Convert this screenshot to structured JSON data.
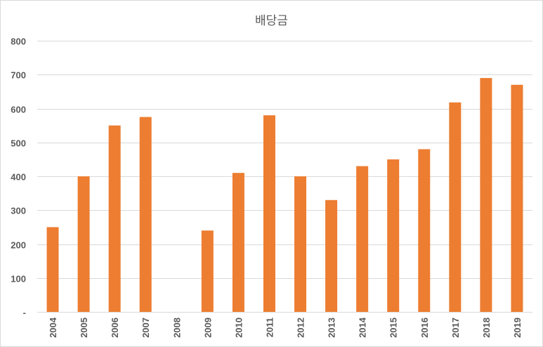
{
  "chart_data": {
    "type": "bar",
    "title": "배당금",
    "categories": [
      "2004",
      "2005",
      "2006",
      "2007",
      "2008",
      "2009",
      "2010",
      "2011",
      "2012",
      "2013",
      "2014",
      "2015",
      "2016",
      "2017",
      "2018",
      "2019"
    ],
    "series": [
      {
        "values": [
          250,
          400,
          550,
          575,
          0,
          240,
          410,
          580,
          400,
          330,
          430,
          450,
          480,
          618,
          690,
          670
        ]
      }
    ],
    "y_ticks": [
      "-",
      "100",
      "200",
      "300",
      "400",
      "500",
      "600",
      "700",
      "800"
    ],
    "ylim": [
      0,
      800
    ],
    "grid": true,
    "legend": "none",
    "bar_color": "#ED7D31",
    "grid_color": "#d9d9d9",
    "text_color": "#595959"
  }
}
